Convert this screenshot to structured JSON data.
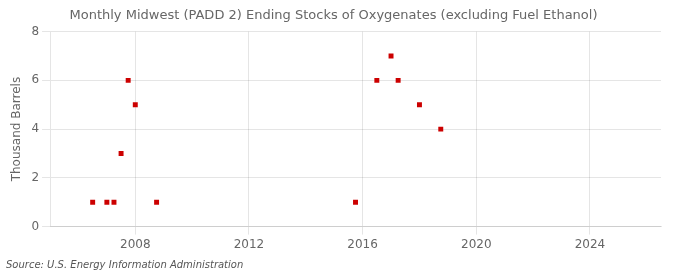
{
  "chart_data": {
    "type": "scatter",
    "title": "Monthly Midwest (PADD 2) Ending Stocks of Oxygenates (excluding Fuel Ethanol)",
    "ylabel": "Thousand Barrels",
    "annotations": [
      "Source: U.S. Energy Information Administration"
    ],
    "x": [
      2006.5,
      2007.0,
      2007.25,
      2007.5,
      2007.75,
      2008.0,
      2008.75,
      2015.75,
      2016.5,
      2017.0,
      2017.25,
      2018.0,
      2018.75
    ],
    "values": [
      1,
      1,
      1,
      3,
      6,
      5,
      1,
      1,
      6,
      7,
      6,
      5,
      4
    ],
    "color": "#cc0000",
    "marker": "square",
    "xlim": [
      2005.0,
      2026.5
    ],
    "ylim": [
      0,
      8
    ],
    "xticks": [
      2008,
      2012,
      2016,
      2020,
      2024
    ],
    "yticks": [
      0,
      2,
      4,
      6,
      8
    ],
    "grid": true
  }
}
